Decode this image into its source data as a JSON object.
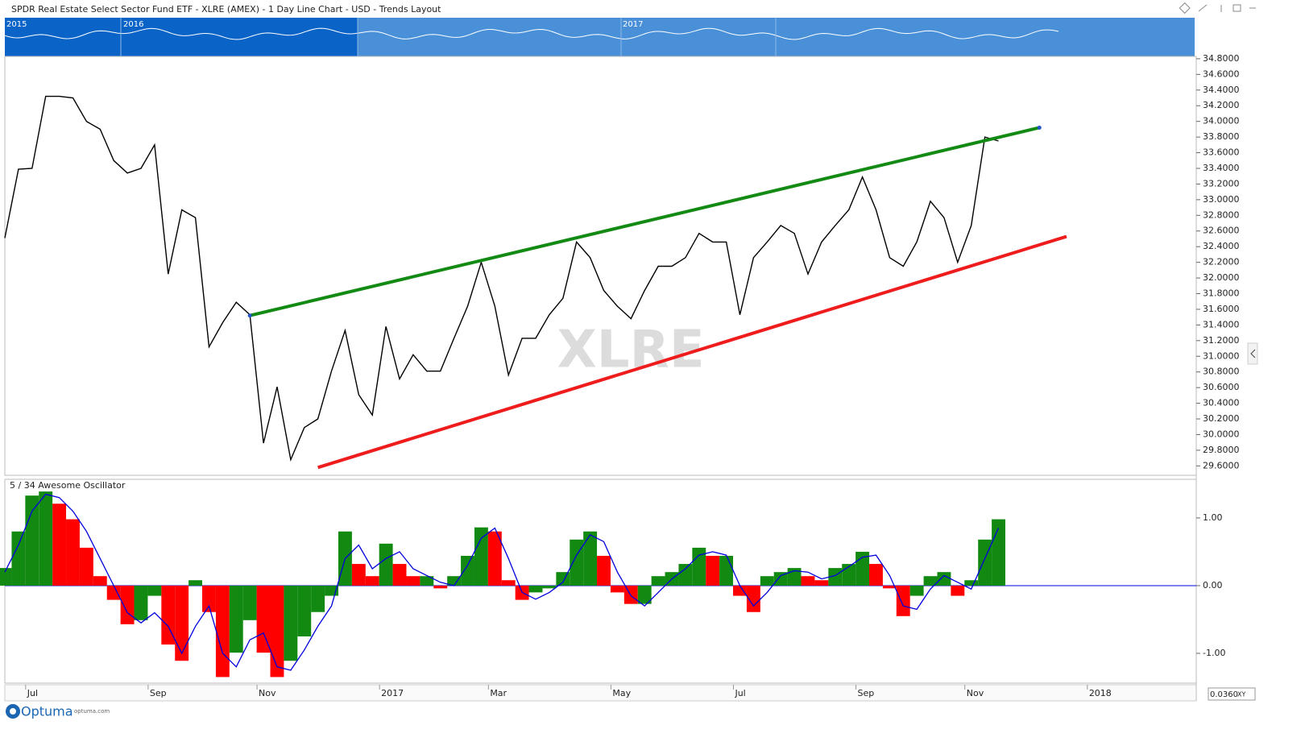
{
  "title": "SPDR Real Estate Select Sector Fund ETF - XLRE (AMEX) - 1 Day Line Chart - USD - Trends Layout",
  "navigator": {
    "labels": [
      "2015",
      "2016",
      "2017"
    ]
  },
  "watermark": "XLRE",
  "footer": {
    "brand": "Optuma",
    "url": "optuma.com",
    "readout": "0.0360",
    "readout_mode": "XY"
  },
  "chart_data": [
    {
      "type": "line",
      "color": "#000000",
      "values": [
        32.51,
        33.39,
        33.4,
        34.32,
        34.32,
        34.3,
        34.0,
        33.9,
        33.5,
        33.34,
        33.4,
        33.7,
        32.05,
        32.87,
        32.77,
        31.12,
        31.43,
        31.69,
        31.53,
        29.89,
        30.61,
        29.68,
        30.09,
        30.2,
        30.81,
        31.33,
        30.51,
        30.25,
        31.38,
        30.71,
        31.02,
        30.81,
        30.81,
        31.23,
        31.64,
        32.2,
        31.64,
        30.76,
        31.23,
        31.23,
        31.53,
        31.74,
        32.46,
        32.26,
        31.84,
        31.64,
        31.48,
        31.84,
        32.15,
        32.15,
        32.26,
        32.57,
        32.46,
        32.46,
        31.53,
        32.26,
        32.46,
        32.67,
        32.57,
        32.05,
        32.46,
        32.67,
        32.87,
        33.29,
        32.87,
        32.26,
        32.15,
        32.46,
        32.98,
        32.77,
        32.2,
        32.67,
        33.8,
        33.75,
        null,
        null,
        null,
        null,
        null,
        null,
        null,
        null,
        null,
        null,
        null,
        null,
        null,
        null
      ],
      "ylim": [
        29.48,
        34.83
      ],
      "yticks": [
        {
          "value": 34.8,
          "label": "34.8000"
        },
        {
          "value": 34.6,
          "label": "34.6000"
        },
        {
          "value": 34.4,
          "label": "34.4000"
        },
        {
          "value": 34.2,
          "label": "34.2000"
        },
        {
          "value": 34.0,
          "label": "34.0000"
        },
        {
          "value": 33.8,
          "label": "33.8000"
        },
        {
          "value": 33.6,
          "label": "33.6000"
        },
        {
          "value": 33.4,
          "label": "33.4000"
        },
        {
          "value": 33.2,
          "label": "33.2000"
        },
        {
          "value": 33.0,
          "label": "33.0000"
        },
        {
          "value": 32.8,
          "label": "32.8000"
        },
        {
          "value": 32.6,
          "label": "32.6000"
        },
        {
          "value": 32.4,
          "label": "32.4000"
        },
        {
          "value": 32.2,
          "label": "32.2000"
        },
        {
          "value": 32.0,
          "label": "32.0000"
        },
        {
          "value": 31.8,
          "label": "31.8000"
        },
        {
          "value": 31.6,
          "label": "31.6000"
        },
        {
          "value": 31.4,
          "label": "31.4000"
        },
        {
          "value": 31.2,
          "label": "31.2000"
        },
        {
          "value": 31.0,
          "label": "31.0000"
        },
        {
          "value": 30.8,
          "label": "30.8000"
        },
        {
          "value": 30.6,
          "label": "30.6000"
        },
        {
          "value": 30.4,
          "label": "30.4000"
        },
        {
          "value": 30.2,
          "label": "30.2000"
        },
        {
          "value": 30.0,
          "label": "30.0000"
        },
        {
          "value": 29.8,
          "label": "29.8000"
        },
        {
          "value": 29.6,
          "label": "29.6000"
        }
      ],
      "trendlines": [
        {
          "color": "#138a13",
          "x": [
            18,
            76
          ],
          "y": [
            31.52,
            33.92
          ]
        },
        {
          "color": "#ee1c1c",
          "x": [
            23,
            78
          ],
          "y": [
            29.58,
            32.53
          ]
        }
      ]
    },
    {
      "type": "bar",
      "title": "5 / 34 Awesome Oscillator",
      "up_color": "#128a12",
      "down_color": "#ff0000",
      "categories": [
        null,
        null,
        "Jul",
        null,
        null,
        null,
        null,
        null,
        null,
        null,
        null,
        "Sep",
        null,
        null,
        null,
        null,
        null,
        null,
        null,
        "Nov",
        null,
        null,
        null,
        null,
        null,
        null,
        null,
        null,
        "2017",
        null,
        null,
        null,
        null,
        null,
        null,
        null,
        "Mar",
        null,
        null,
        null,
        null,
        null,
        null,
        null,
        null,
        "May",
        null,
        null,
        null,
        null,
        null,
        null,
        null,
        null,
        "Jul",
        null,
        null,
        null,
        null,
        null,
        null,
        null,
        null,
        "Sep",
        null,
        null,
        null,
        null,
        null,
        null,
        null,
        "Nov",
        null,
        null,
        null,
        null,
        null,
        null,
        null,
        null,
        "2018",
        null,
        null,
        null,
        null,
        null,
        null,
        null
      ],
      "values": [
        0.26,
        0.8,
        1.33,
        1.39,
        1.21,
        0.98,
        0.56,
        0.14,
        -0.21,
        -0.57,
        -0.51,
        -0.15,
        -0.87,
        -1.11,
        0.08,
        -0.39,
        -1.35,
        -0.99,
        -0.51,
        -0.99,
        -1.35,
        -1.11,
        -0.75,
        -0.39,
        -0.15,
        0.8,
        0.32,
        0.14,
        0.62,
        0.32,
        0.14,
        0.14,
        -0.04,
        0.14,
        0.44,
        0.86,
        0.8,
        0.08,
        -0.21,
        -0.1,
        -0.04,
        0.2,
        0.68,
        0.8,
        0.44,
        -0.1,
        -0.27,
        -0.27,
        0.14,
        0.2,
        0.32,
        0.56,
        0.44,
        0.44,
        -0.15,
        -0.39,
        0.14,
        0.2,
        0.26,
        0.14,
        0.08,
        0.26,
        0.32,
        0.5,
        0.32,
        -0.04,
        -0.45,
        -0.15,
        0.14,
        0.2,
        -0.15,
        0.08,
        0.68,
        0.98,
        null,
        null,
        null,
        null,
        null,
        null,
        null,
        null,
        null,
        null,
        null,
        null,
        null,
        null
      ],
      "signal": {
        "color": "#0000dd",
        "values": [
          0.2,
          0.6,
          1.1,
          1.35,
          1.3,
          1.1,
          0.8,
          0.4,
          0.0,
          -0.4,
          -0.55,
          -0.4,
          -0.6,
          -1.0,
          -0.6,
          -0.3,
          -1.0,
          -1.2,
          -0.8,
          -0.7,
          -1.2,
          -1.25,
          -0.95,
          -0.6,
          -0.3,
          0.4,
          0.6,
          0.25,
          0.4,
          0.5,
          0.25,
          0.15,
          0.05,
          0.0,
          0.3,
          0.7,
          0.85,
          0.4,
          -0.1,
          -0.2,
          -0.1,
          0.05,
          0.45,
          0.75,
          0.65,
          0.2,
          -0.15,
          -0.3,
          -0.1,
          0.1,
          0.25,
          0.45,
          0.5,
          0.45,
          0.0,
          -0.3,
          -0.1,
          0.15,
          0.22,
          0.2,
          0.1,
          0.15,
          0.28,
          0.42,
          0.45,
          0.15,
          -0.3,
          -0.35,
          -0.05,
          0.15,
          0.05,
          -0.05,
          0.4,
          0.85,
          null,
          null,
          null,
          null,
          null,
          null,
          null,
          null,
          null,
          null,
          null,
          null,
          null,
          null
        ]
      },
      "ylim": [
        -1.44,
        1.57
      ],
      "yticks": [
        {
          "value": 1,
          "label": "1.00"
        },
        {
          "value": 0,
          "label": "0.00"
        },
        {
          "value": -1,
          "label": "-1.00"
        }
      ]
    }
  ]
}
